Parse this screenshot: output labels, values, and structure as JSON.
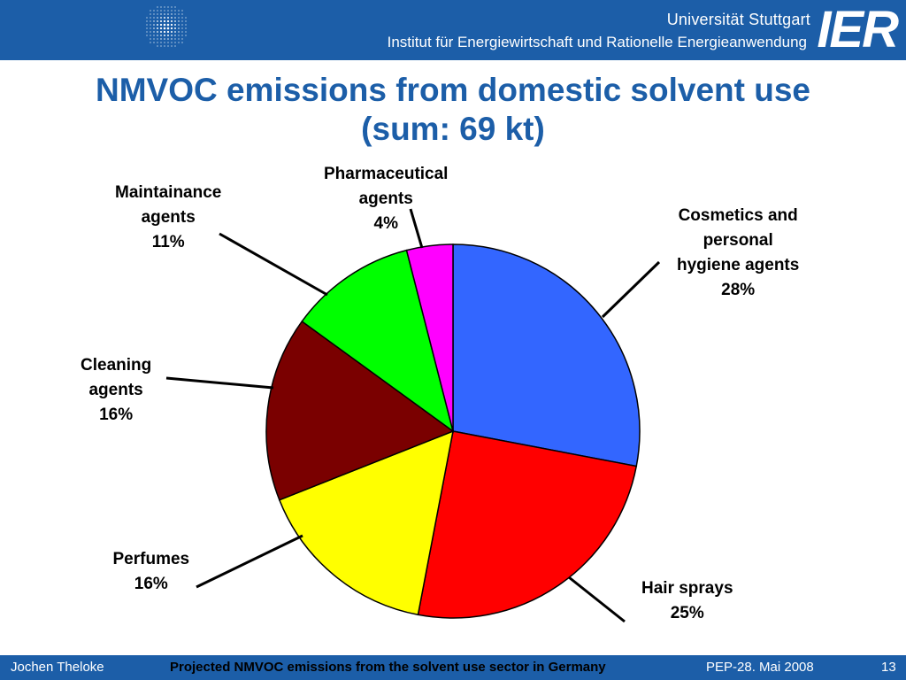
{
  "header": {
    "university": "Universität Stuttgart",
    "institute": "Institut für Energiewirtschaft und Rationelle Energieanwendung",
    "logo_text": "IER",
    "background": "#1c5ea8"
  },
  "chart_data": {
    "type": "pie",
    "title": "NMVOC emissions from domestic solvent use",
    "subtitle": "(sum: 69 kt)",
    "start_angle_deg": -90,
    "direction": "clockwise",
    "slices": [
      {
        "label_lines": [
          "Cosmetics and",
          "personal",
          "hygiene agents"
        ],
        "percent_text": "28%",
        "value": 28,
        "color": "#3366ff"
      },
      {
        "label_lines": [
          "Hair sprays"
        ],
        "percent_text": "25%",
        "value": 25,
        "color": "#ff0000"
      },
      {
        "label_lines": [
          "Perfumes"
        ],
        "percent_text": "16%",
        "value": 16,
        "color": "#ffff00"
      },
      {
        "label_lines": [
          "Cleaning",
          "agents"
        ],
        "percent_text": "16%",
        "value": 16,
        "color": "#7a0000"
      },
      {
        "label_lines": [
          "Maintainance",
          "agents"
        ],
        "percent_text": "11%",
        "value": 11,
        "color": "#00ff00"
      },
      {
        "label_lines": [
          "Pharmaceutical",
          "agents"
        ],
        "percent_text": "4%",
        "value": 4,
        "color": "#ff00ff"
      }
    ]
  },
  "footer": {
    "author": "Jochen Theloke",
    "topic": "Projected NMVOC emissions from the solvent use sector in Germany",
    "event": "PEP-28. Mai 2008",
    "page": "13"
  }
}
